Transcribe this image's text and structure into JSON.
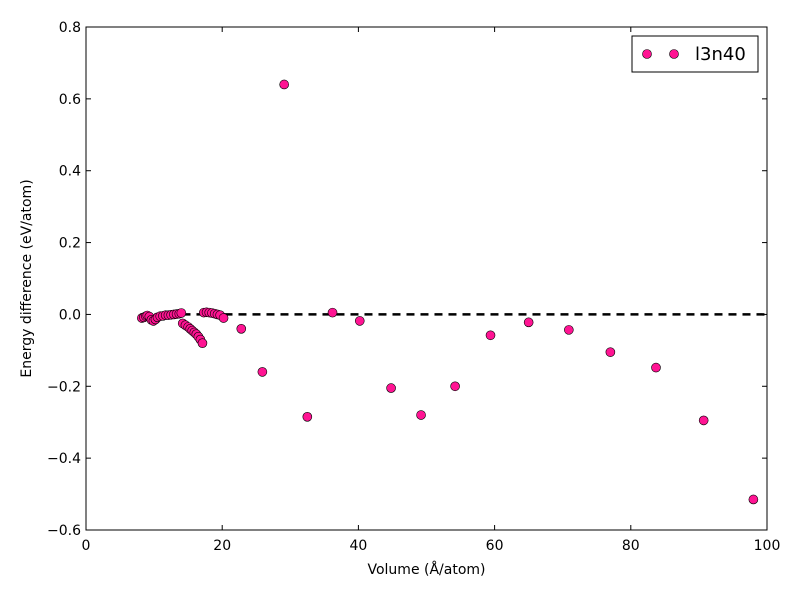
{
  "chart_data": {
    "type": "scatter",
    "title": "",
    "xlabel": "Volume (Å/atom)",
    "ylabel": "Energy difference (eV/atom)",
    "xlim": [
      0,
      100
    ],
    "ylim": [
      -0.6,
      0.8
    ],
    "xticks": [
      0,
      20,
      40,
      60,
      80,
      100
    ],
    "xtick_labels": [
      "0",
      "20",
      "40",
      "60",
      "80",
      "100"
    ],
    "yticks": [
      -0.6,
      -0.4,
      -0.2,
      0.0,
      0.2,
      0.4,
      0.6,
      0.8
    ],
    "ytick_labels": [
      "−0.6",
      "−0.4",
      "−0.2",
      "0.0",
      "0.2",
      "0.4",
      "0.6",
      "0.8"
    ],
    "grid": false,
    "legend_position": "top-right",
    "reference_line": {
      "y": 0.0,
      "x_range": [
        8,
        100
      ],
      "style": "dashed",
      "color": "#000000"
    },
    "series": [
      {
        "name": "l3n40",
        "color": "#ff1493",
        "edge_color": "#000000",
        "points": [
          [
            8.2,
            -0.01
          ],
          [
            8.5,
            -0.008
          ],
          [
            8.8,
            -0.005
          ],
          [
            9.0,
            -0.003
          ],
          [
            9.3,
            -0.006
          ],
          [
            9.6,
            -0.015
          ],
          [
            9.9,
            -0.018
          ],
          [
            10.2,
            -0.014
          ],
          [
            10.5,
            -0.008
          ],
          [
            10.9,
            -0.005
          ],
          [
            11.3,
            -0.004
          ],
          [
            11.7,
            -0.002
          ],
          [
            12.1,
            -0.002
          ],
          [
            12.5,
            -0.001
          ],
          [
            12.9,
            0.0
          ],
          [
            13.3,
            0.001
          ],
          [
            13.7,
            0.002
          ],
          [
            14.0,
            0.004
          ],
          [
            14.2,
            -0.025
          ],
          [
            14.6,
            -0.03
          ],
          [
            15.0,
            -0.035
          ],
          [
            15.3,
            -0.04
          ],
          [
            15.6,
            -0.045
          ],
          [
            15.9,
            -0.05
          ],
          [
            16.2,
            -0.055
          ],
          [
            16.5,
            -0.062
          ],
          [
            16.8,
            -0.07
          ],
          [
            17.1,
            -0.08
          ],
          [
            17.3,
            0.005
          ],
          [
            17.7,
            0.006
          ],
          [
            18.1,
            0.005
          ],
          [
            18.5,
            0.004
          ],
          [
            18.9,
            0.002
          ],
          [
            19.3,
            0.0
          ],
          [
            19.7,
            -0.002
          ],
          [
            20.2,
            -0.01
          ],
          [
            22.8,
            -0.04
          ],
          [
            25.9,
            -0.16
          ],
          [
            29.1,
            0.64
          ],
          [
            32.5,
            -0.285
          ],
          [
            36.2,
            0.005
          ],
          [
            40.2,
            -0.018
          ],
          [
            44.8,
            -0.205
          ],
          [
            49.2,
            -0.28
          ],
          [
            54.2,
            -0.2
          ],
          [
            59.4,
            -0.058
          ],
          [
            65.0,
            -0.022
          ],
          [
            70.9,
            -0.043
          ],
          [
            77.0,
            -0.105
          ],
          [
            83.7,
            -0.148
          ],
          [
            90.7,
            -0.295
          ],
          [
            98.0,
            -0.515
          ]
        ]
      }
    ]
  }
}
